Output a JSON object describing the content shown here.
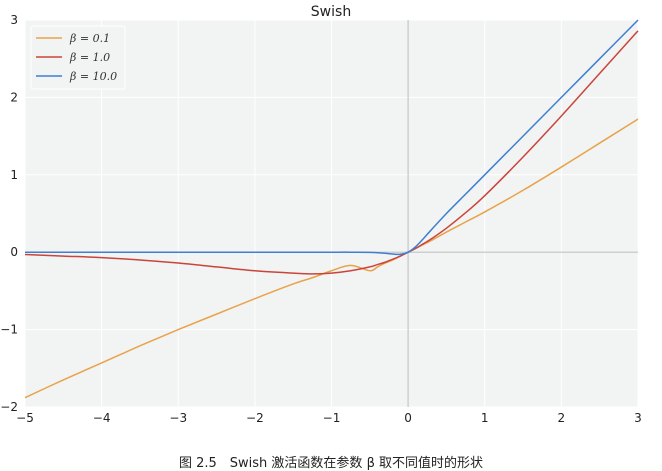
{
  "chart_data": {
    "type": "line",
    "title": "Swish",
    "xlabel": "",
    "ylabel": "",
    "xlim": [
      -5,
      3
    ],
    "ylim": [
      -2,
      3
    ],
    "xticks": [
      "−5",
      "−4",
      "−3",
      "−2",
      "−1",
      "0",
      "1",
      "2",
      "3"
    ],
    "yticks": [
      "−2",
      "−1",
      "0",
      "1",
      "2",
      "3"
    ],
    "grid": true,
    "legend_position": "top-left",
    "x": [
      -5,
      -4.5,
      -4,
      -3.5,
      -3,
      -2.5,
      -2,
      -1.5,
      -1.25,
      -1,
      -0.75,
      -0.5,
      -0.4,
      -0.3,
      -0.2,
      -0.1,
      0,
      0.1,
      0.2,
      0.3,
      0.5,
      0.75,
      1,
      1.5,
      2,
      2.5,
      3
    ],
    "series": [
      {
        "name": "β = 0.1",
        "color": "#e8a34a",
        "values": [
          -1.88,
          -1.65,
          -1.43,
          -1.21,
          -1.0,
          -0.8,
          -0.6,
          -0.41,
          -0.33,
          -0.24,
          -0.17,
          -0.24,
          -0.19,
          -0.14,
          -0.1,
          -0.05,
          0,
          0.05,
          0.1,
          0.15,
          0.26,
          0.39,
          0.52,
          0.8,
          1.1,
          1.41,
          1.72
        ]
      },
      {
        "name": "β = 1.0",
        "color": "#c9453b",
        "values": [
          -0.03,
          -0.05,
          -0.07,
          -0.1,
          -0.14,
          -0.19,
          -0.24,
          -0.27,
          -0.28,
          -0.27,
          -0.24,
          -0.19,
          -0.16,
          -0.13,
          -0.09,
          -0.05,
          0,
          0.05,
          0.11,
          0.17,
          0.31,
          0.51,
          0.73,
          1.23,
          1.76,
          2.31,
          2.86
        ]
      },
      {
        "name": "β = 10.0",
        "color": "#3f7fcf",
        "values": [
          0,
          0,
          0,
          0,
          0,
          0,
          0,
          0,
          0,
          0,
          0,
          -0.003,
          -0.007,
          -0.014,
          -0.024,
          -0.027,
          0,
          0.073,
          0.176,
          0.286,
          0.5,
          0.75,
          1.0,
          1.5,
          2.0,
          2.5,
          3.0
        ]
      }
    ]
  },
  "caption": "图 2.5　Swish 激活函数在参数 β 取不同值时的形状"
}
